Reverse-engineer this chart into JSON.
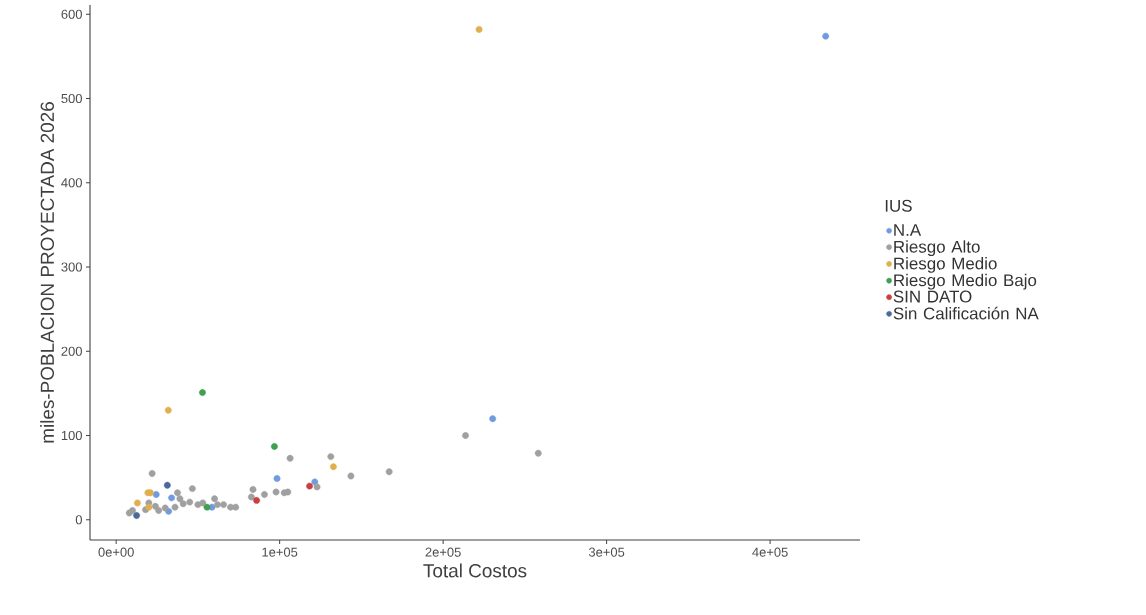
{
  "chart_data": {
    "type": "scatter",
    "xlabel": "Total Costos",
    "ylabel": "miles-POBLACION PROYECTADA 2026",
    "legend_title": "IUS",
    "legend": "right",
    "marker": "circle",
    "grid": false,
    "xlim": [
      -16000,
      455000
    ],
    "ylim": [
      -24,
      611
    ],
    "xticks": [
      {
        "value": 0,
        "label": "0e+00"
      },
      {
        "value": 100000,
        "label": "1e+05"
      },
      {
        "value": 200000,
        "label": "2e+05"
      },
      {
        "value": 300000,
        "label": "3e+05"
      },
      {
        "value": 400000,
        "label": "4e+05"
      }
    ],
    "yticks": [
      0,
      100,
      200,
      300,
      400,
      500,
      600
    ],
    "series": [
      {
        "name": "N.A",
        "color": "#6f9be0",
        "x": [
          24500,
          33900,
          32100,
          58600,
          98400,
          121500,
          230300,
          434000
        ],
        "values": [
          30,
          26,
          10,
          15,
          49,
          45,
          120,
          574
        ]
      },
      {
        "name": "Riesgo Alto",
        "color": "#a0a0a0",
        "x": [
          22000,
          37500,
          46600,
          60200,
          65700,
          73100,
          83700,
          82700,
          90700,
          97800,
          102800,
          106400,
          131300,
          143600,
          167000,
          122900,
          213700,
          258200,
          10000,
          8000,
          24000,
          30000,
          36000,
          41000,
          45000,
          50000,
          53000,
          62000,
          26000,
          20000,
          18000,
          39000,
          105000,
          70000
        ],
        "values": [
          55,
          32,
          37,
          25,
          18,
          15,
          36,
          27,
          30,
          33,
          32,
          73,
          75,
          52,
          57,
          39,
          100,
          79,
          11,
          8,
          16,
          14,
          15,
          19,
          21,
          18,
          20,
          18,
          11,
          20,
          12,
          25,
          33,
          15
        ]
      },
      {
        "name": "Riesgo Medio",
        "color": "#e0b050",
        "x": [
          19400,
          21000,
          13000,
          20000,
          31900,
          132900,
          222000
        ],
        "values": [
          32,
          32,
          20,
          15,
          130,
          63,
          582
        ]
      },
      {
        "name": "Riesgo Medio Bajo",
        "color": "#40a050",
        "x": [
          52800,
          96800,
          55600
        ],
        "values": [
          151,
          87,
          15
        ]
      },
      {
        "name": "SIN DATO",
        "color": "#c84040",
        "x": [
          85900,
          118300
        ],
        "values": [
          23,
          40
        ]
      },
      {
        "name": "Sin Calificación NA",
        "color": "#4a6a9a",
        "x": [
          31300,
          12500
        ],
        "values": [
          41,
          5
        ]
      }
    ]
  }
}
